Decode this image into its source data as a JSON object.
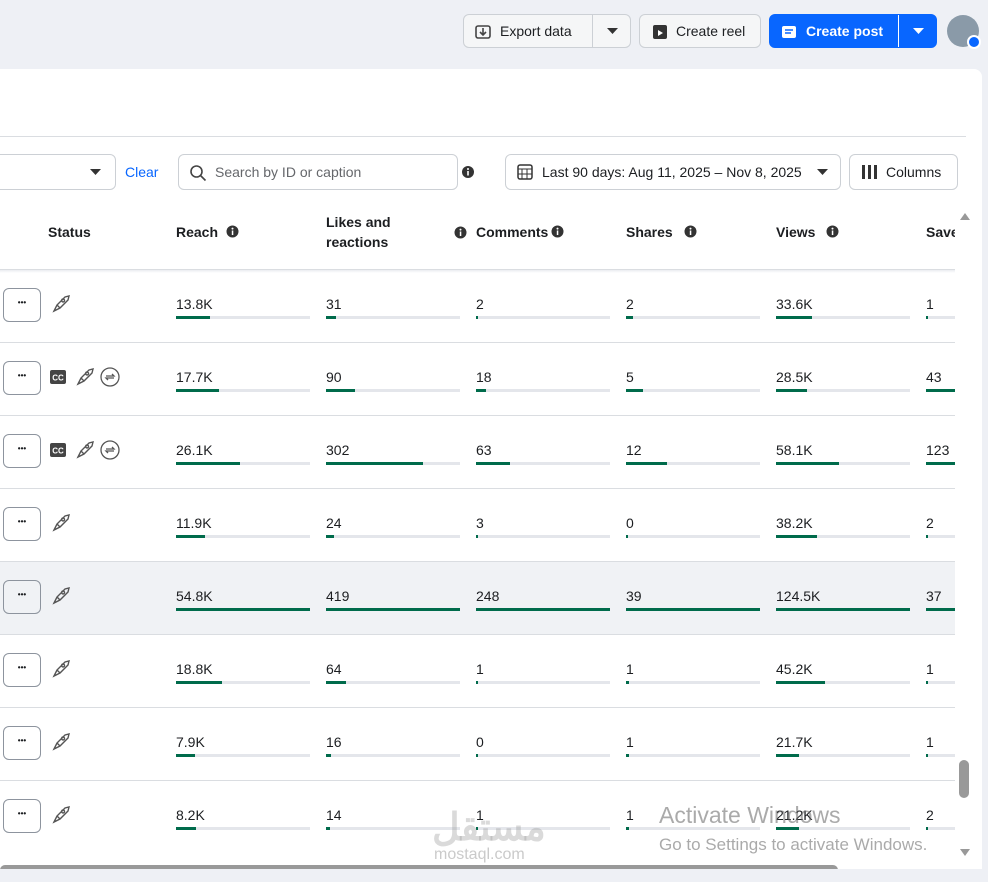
{
  "header": {
    "export": "Export data",
    "reel": "Create reel",
    "post": "Create post"
  },
  "filters": {
    "clear": "Clear",
    "search": "Search by ID or caption",
    "date": "Last 90 days: Aug 11, 2025 – Nov 8, 2025",
    "columns": "Columns"
  },
  "table": {
    "headers": [
      "Status",
      "Reach",
      "Likes and reactions",
      "Comments",
      "Shares",
      "Views",
      "Save"
    ],
    "rows": [
      [
        "13.8K",
        "31",
        "2",
        "2",
        "33.6K",
        "1"
      ],
      [
        "17.7K",
        "90",
        "18",
        "5",
        "28.5K",
        "43"
      ],
      [
        "26.1K",
        "302",
        "63",
        "12",
        "58.1K",
        "123"
      ],
      [
        "11.9K",
        "24",
        "3",
        "0",
        "38.2K",
        "2"
      ],
      [
        "54.8K",
        "419",
        "248",
        "39",
        "124.5K",
        "37"
      ],
      [
        "18.8K",
        "64",
        "1",
        "1",
        "45.2K",
        "1"
      ],
      [
        "7.9K",
        "16",
        "0",
        "1",
        "21.7K",
        "1"
      ],
      [
        "8.2K",
        "14",
        "1",
        "1",
        "21.2K",
        "2"
      ]
    ]
  },
  "watermark": {
    "title": "Activate Windows",
    "text": "Go to Settings to activate Windows.",
    "brand": "مستقل",
    "site": "mostaql.com"
  }
}
